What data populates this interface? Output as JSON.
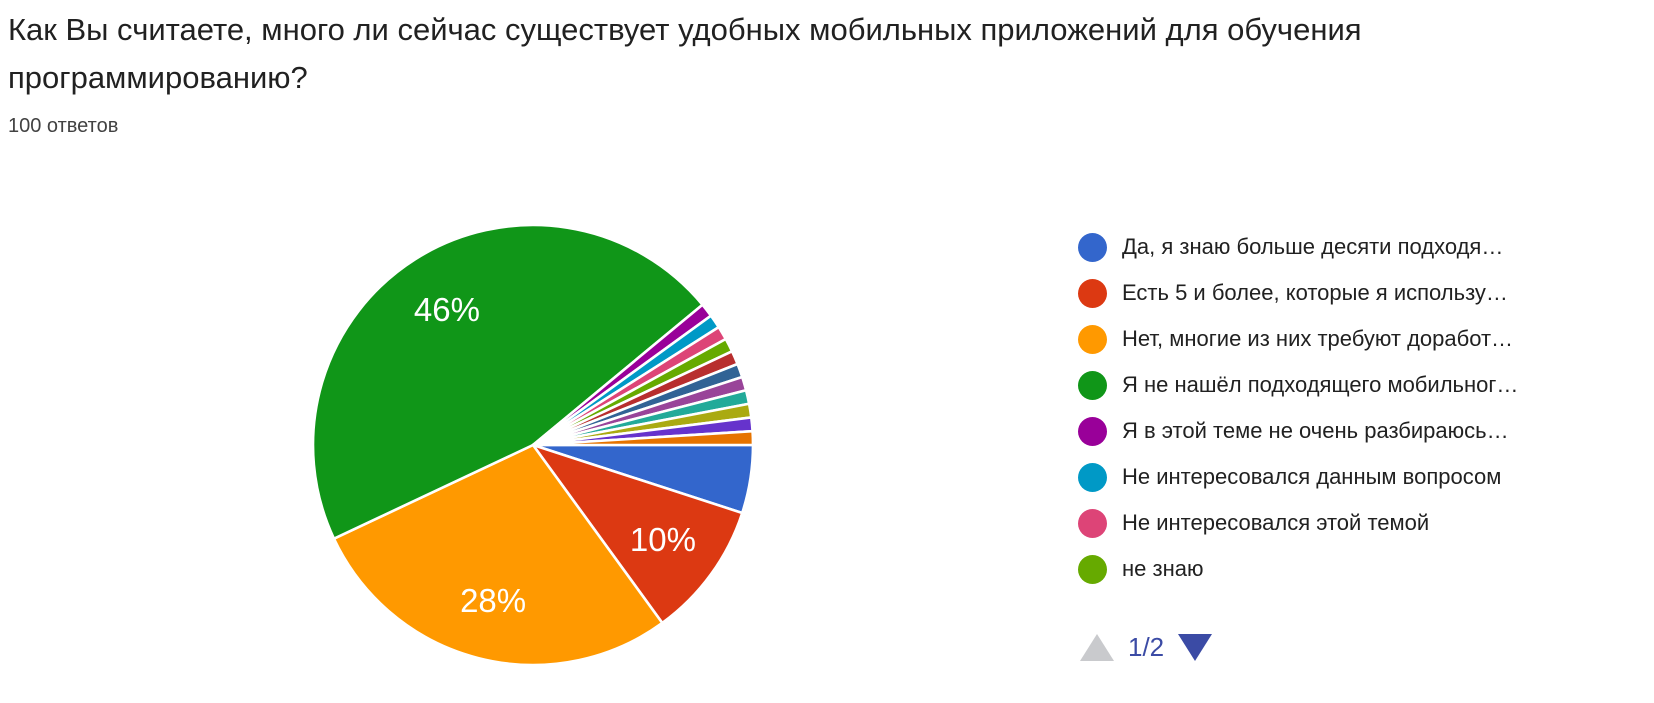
{
  "header": {
    "title": "Как Вы считаете, много ли сейчас существует удобных мобильных приложений для обучения программированию?",
    "responses_count": "100 ответов"
  },
  "chart_data": {
    "type": "pie",
    "title": "Как Вы считаете, много ли сейчас существует удобных мобильных приложений для обучения программированию?",
    "total": 100,
    "start_angle_deg": 0,
    "direction": "clockwise",
    "slice_separator_color": "#ffffff",
    "label_color": "#ffffff",
    "slices": [
      {
        "value": 5,
        "color": "#3366CC",
        "pct_label": ""
      },
      {
        "value": 10,
        "color": "#DC3912",
        "pct_label": "10%"
      },
      {
        "value": 28,
        "color": "#FF9900",
        "pct_label": "28%"
      },
      {
        "value": 46,
        "color": "#109618",
        "pct_label": "46%"
      },
      {
        "value": 1,
        "color": "#990099",
        "pct_label": ""
      },
      {
        "value": 1,
        "color": "#0099C6",
        "pct_label": ""
      },
      {
        "value": 1,
        "color": "#DD4477",
        "pct_label": ""
      },
      {
        "value": 1,
        "color": "#66AA00",
        "pct_label": ""
      },
      {
        "value": 1,
        "color": "#B82E2E",
        "pct_label": ""
      },
      {
        "value": 1,
        "color": "#316395",
        "pct_label": ""
      },
      {
        "value": 1,
        "color": "#994499",
        "pct_label": ""
      },
      {
        "value": 1,
        "color": "#22AA99",
        "pct_label": ""
      },
      {
        "value": 1,
        "color": "#AAAA11",
        "pct_label": ""
      },
      {
        "value": 1,
        "color": "#6633CC",
        "pct_label": ""
      },
      {
        "value": 1,
        "color": "#E67300",
        "pct_label": ""
      }
    ],
    "legend": {
      "position": "right",
      "items": [
        {
          "color": "#3366CC",
          "label": "Да, я знаю больше десяти подходя…"
        },
        {
          "color": "#DC3912",
          "label": "Есть 5 и более, которые я использу…"
        },
        {
          "color": "#FF9900",
          "label": "Нет, многие из них требуют доработ…"
        },
        {
          "color": "#109618",
          "label": "Я не нашёл подходящего мобильног…"
        },
        {
          "color": "#990099",
          "label": "Я в этой теме не очень разбираюсь…"
        },
        {
          "color": "#0099C6",
          "label": "Не интересовался данным вопросом"
        },
        {
          "color": "#DD4477",
          "label": "Не интересовался этой темой"
        },
        {
          "color": "#66AA00",
          "label": "не знаю"
        }
      ],
      "pagination": {
        "label": "1/2",
        "up_enabled": false,
        "down_enabled": true,
        "active_color": "#3b4ba5",
        "disabled_color": "#c9cacd"
      }
    }
  }
}
